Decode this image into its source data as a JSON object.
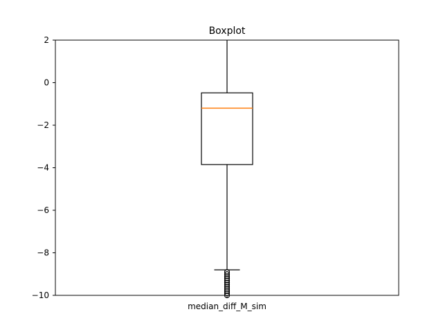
{
  "chart_data": {
    "type": "boxplot",
    "title": "Boxplot",
    "xlabel": "",
    "ylabel": "",
    "ylim": [
      -10,
      2
    ],
    "yticks": [
      2,
      0,
      -2,
      -4,
      -6,
      -8,
      -10
    ],
    "ytick_labels": [
      "2",
      "0",
      "−2",
      "−4",
      "−6",
      "−8",
      "−10"
    ],
    "categories": [
      "median_diff_M_sim"
    ],
    "grid": false,
    "colors": {
      "box": "#000000",
      "median": "#ff7f0e",
      "background": "#ffffff"
    },
    "series": [
      {
        "category": "median_diff_M_sim",
        "whisker_low": -8.8,
        "q1": -3.85,
        "median": -1.2,
        "q3": -0.48,
        "whisker_high": 2,
        "outliers": [
          -8.9,
          -9.0,
          -9.1,
          -9.2,
          -9.3,
          -9.4,
          -9.5,
          -9.6,
          -9.7,
          -9.8,
          -9.9,
          -10.0
        ]
      }
    ]
  }
}
